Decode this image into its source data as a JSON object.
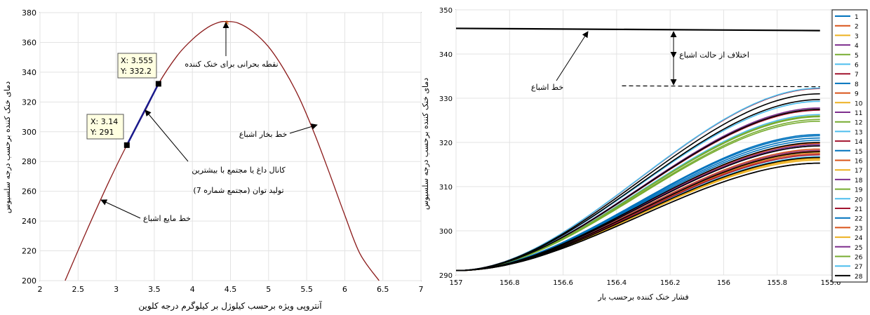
{
  "chart_data": [
    {
      "type": "line",
      "title": "",
      "xlabel": "آنتروپی ویژه برحسب کیلوژل بر کیلوگرم درجه کلوین",
      "ylabel": "دمای خنک کننده برحسب درجه سلسیوس",
      "xlim": [
        2,
        7
      ],
      "ylim": [
        200,
        380
      ],
      "xticks": [
        2,
        2.5,
        3,
        3.5,
        4,
        4.5,
        5,
        5.5,
        6,
        6.5,
        7
      ],
      "yticks": [
        200,
        220,
        240,
        260,
        280,
        300,
        320,
        340,
        360,
        380
      ],
      "grid": true,
      "colors": {
        "dome": "#8b1a1a",
        "channel": "#1a1a8c",
        "critical": "#d95f02"
      },
      "series": [
        {
          "x": [
            2.33,
            2.6,
            2.9,
            3.14,
            3.4,
            3.555,
            3.8,
            4.0,
            4.2,
            4.35,
            4.45,
            4.6,
            4.8,
            5.0,
            5.2,
            5.4,
            5.6,
            5.8,
            6.0,
            6.2,
            6.45
          ],
          "y": [
            200,
            232,
            266,
            291,
            316,
            332.2,
            351,
            362,
            370,
            373.5,
            374,
            373,
            367,
            357,
            342,
            323,
            299,
            272,
            244,
            218,
            200
          ]
        },
        {
          "x": [
            3.14,
            3.555
          ],
          "y": [
            291,
            332.2
          ]
        }
      ],
      "markers": [
        {
          "x": 3.14,
          "y": 291,
          "label_x": "X: 3.14",
          "label_y": "Y: 291"
        },
        {
          "x": 3.555,
          "y": 332.2,
          "label_x": "X: 3.555",
          "label_y": "Y: 332.2"
        }
      ],
      "critical_point": {
        "x": 4.45,
        "y": 374,
        "symbol": "*"
      },
      "annotations": [
        "نقطه بحرانی برای خنک کننده",
        "خط بخار اشباع",
        "کانال داغ یا مجتمع با بیشترین",
        "تولید توان (مجتمع شماره 7)",
        "خط مایع اشباع"
      ]
    },
    {
      "type": "line",
      "title": "",
      "xlabel": "فشار خنک کننده برحسب بار",
      "ylabel": "دمای خنک کننده برحسب درجه سلسیوس",
      "xlim": [
        157,
        155.6
      ],
      "x_reversed": true,
      "ylim": [
        290,
        350
      ],
      "xticks": [
        157,
        156.8,
        156.6,
        156.4,
        156.2,
        156,
        155.8,
        155.6
      ],
      "yticks": [
        290,
        300,
        310,
        320,
        330,
        340,
        350
      ],
      "grid": true,
      "legend_position": "right",
      "x_start": 157,
      "x_end": 155.64,
      "y_start": 291,
      "saturation_line": {
        "x": [
          157,
          155.64
        ],
        "y": [
          345.8,
          345.3
        ]
      },
      "dashed_line": {
        "x": [
          156.38,
          155.64
        ],
        "y": [
          332.8,
          332.6
        ]
      },
      "series": [
        {
          "name": "1",
          "color": "#0072BD",
          "final": 321.5
        },
        {
          "name": "2",
          "color": "#D95319",
          "final": 318.5
        },
        {
          "name": "3",
          "color": "#EDB120",
          "final": 317.8
        },
        {
          "name": "4",
          "color": "#7E2F8E",
          "final": 319.2
        },
        {
          "name": "5",
          "color": "#77AC30",
          "final": 324.8
        },
        {
          "name": "6",
          "color": "#4DBEEE",
          "final": 326.3
        },
        {
          "name": "7",
          "color": "#A2142F",
          "final": 332.2
        },
        {
          "name": "8",
          "color": "#0072BD",
          "final": 320.5
        },
        {
          "name": "9",
          "color": "#D95319",
          "final": 317.5
        },
        {
          "name": "10",
          "color": "#EDB120",
          "final": 316.3
        },
        {
          "name": "11",
          "color": "#7E2F8E",
          "final": 327.8
        },
        {
          "name": "12",
          "color": "#77AC30",
          "final": 325.8
        },
        {
          "name": "13",
          "color": "#4DBEEE",
          "final": 316.8
        },
        {
          "name": "14",
          "color": "#A2142F",
          "final": 327.3
        },
        {
          "name": "15",
          "color": "#0072BD",
          "final": 321.0
        },
        {
          "name": "16",
          "color": "#D95319",
          "final": 319.8
        },
        {
          "name": "17",
          "color": "#EDB120",
          "final": 316.0
        },
        {
          "name": "18",
          "color": "#7E2F8E",
          "final": 318.2
        },
        {
          "name": "19",
          "color": "#77AC30",
          "final": 325.2
        },
        {
          "name": "20",
          "color": "#4DBEEE",
          "final": 329.3
        },
        {
          "name": "21",
          "color": "#A2142F",
          "final": 317.2
        },
        {
          "name": "22",
          "color": "#0072BD",
          "final": 321.8
        },
        {
          "name": "23",
          "color": "#D95319",
          "final": 318.0
        },
        {
          "name": "24",
          "color": "#EDB120",
          "final": 316.5
        },
        {
          "name": "25",
          "color": "#7E2F8E",
          "final": 319.5
        },
        {
          "name": "26",
          "color": "#77AC30",
          "final": 326.0
        },
        {
          "name": "27",
          "color": "#4DBEEE",
          "final": 332.3
        },
        {
          "name": "28",
          "color": "#000000",
          "final": 315.3
        }
      ],
      "overlay_black_finals": [
        331.0,
        329.7,
        327.5,
        320.0,
        319.2,
        317.9,
        316.6,
        315.3
      ],
      "annotations": [
        "خط اشباع",
        "اختلاف از حالت اشباع"
      ]
    }
  ]
}
